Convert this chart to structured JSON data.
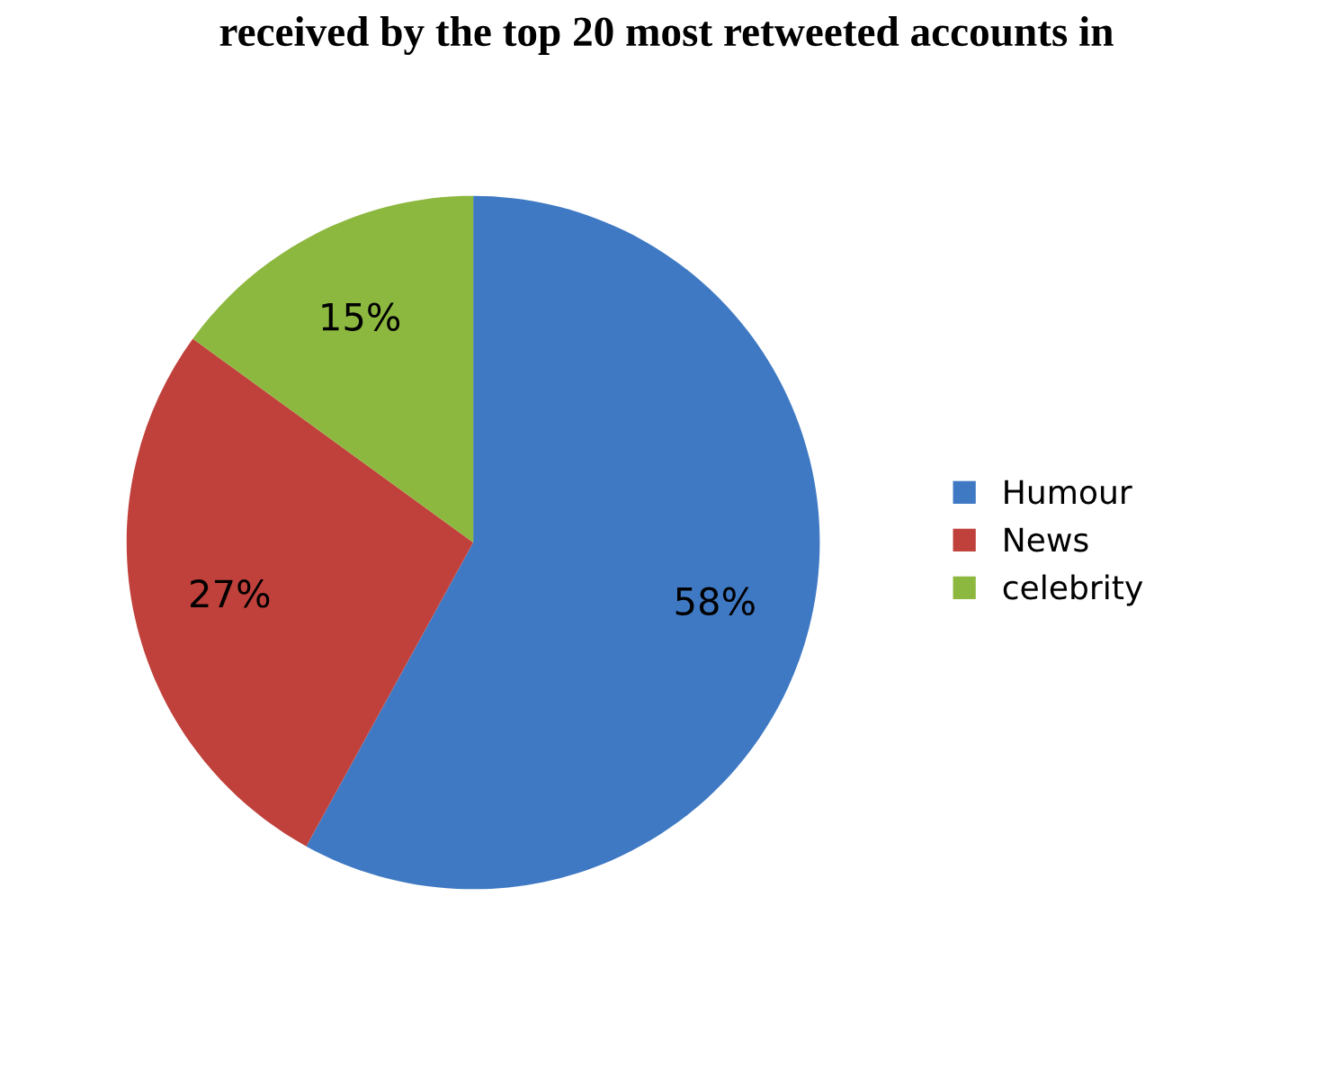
{
  "chart_data": {
    "type": "pie",
    "title": "received by the top 20 most retweeted accounts in",
    "categories": [
      "Humour",
      "News",
      "celebrity"
    ],
    "values": [
      58,
      27,
      15
    ],
    "colors": [
      "#3f79c3",
      "#c0413b",
      "#8db83f"
    ],
    "value_labels": [
      "58%",
      "27%",
      "15%"
    ],
    "legend": "right"
  }
}
